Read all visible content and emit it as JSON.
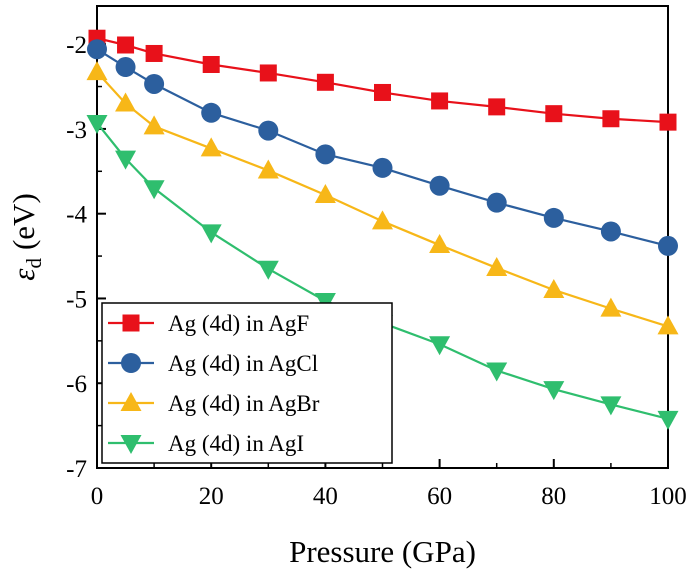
{
  "chart_data": {
    "type": "line",
    "x": [
      0,
      5,
      10,
      20,
      30,
      40,
      50,
      60,
      70,
      80,
      90,
      100
    ],
    "series": [
      {
        "name": "Ag (4d) in AgF",
        "marker": "square",
        "color": "#e8111a",
        "values": [
          -1.93,
          -2.01,
          -2.11,
          -2.24,
          -2.34,
          -2.45,
          -2.57,
          -2.67,
          -2.74,
          -2.82,
          -2.88,
          -2.92
        ]
      },
      {
        "name": "Ag (4d) in AgCl",
        "marker": "circle",
        "color": "#2c5f9e",
        "values": [
          -2.06,
          -2.27,
          -2.47,
          -2.81,
          -3.02,
          -3.3,
          -3.46,
          -3.67,
          -3.87,
          -4.05,
          -4.21,
          -4.38
        ]
      },
      {
        "name": "Ag (4d) in AgBr",
        "marker": "triangle-up",
        "color": "#f7b718",
        "values": [
          -2.33,
          -2.7,
          -2.97,
          -3.23,
          -3.49,
          -3.78,
          -4.09,
          -4.37,
          -4.64,
          -4.9,
          -5.12,
          -5.33
        ]
      },
      {
        "name": "Ag (4d) in AgI",
        "marker": "triangle-down",
        "color": "#2fbe6e",
        "values": [
          -2.93,
          -3.35,
          -3.7,
          -4.22,
          -4.65,
          -5.03,
          -5.29,
          -5.54,
          -5.85,
          -6.07,
          -6.25,
          -6.42
        ]
      }
    ],
    "xlabel": "Pressure (GPa)",
    "ylabel_main": "ε",
    "ylabel_sub": "d",
    "ylabel_unit": "(eV)",
    "xlim": [
      0,
      100
    ],
    "ylim": [
      -7,
      -1.55
    ],
    "xticks": [
      0,
      20,
      40,
      60,
      80,
      100
    ],
    "yticks": [
      -7,
      -6,
      -5,
      -4,
      -3,
      -2
    ],
    "grid": false,
    "legend_position": "bottom-left"
  }
}
